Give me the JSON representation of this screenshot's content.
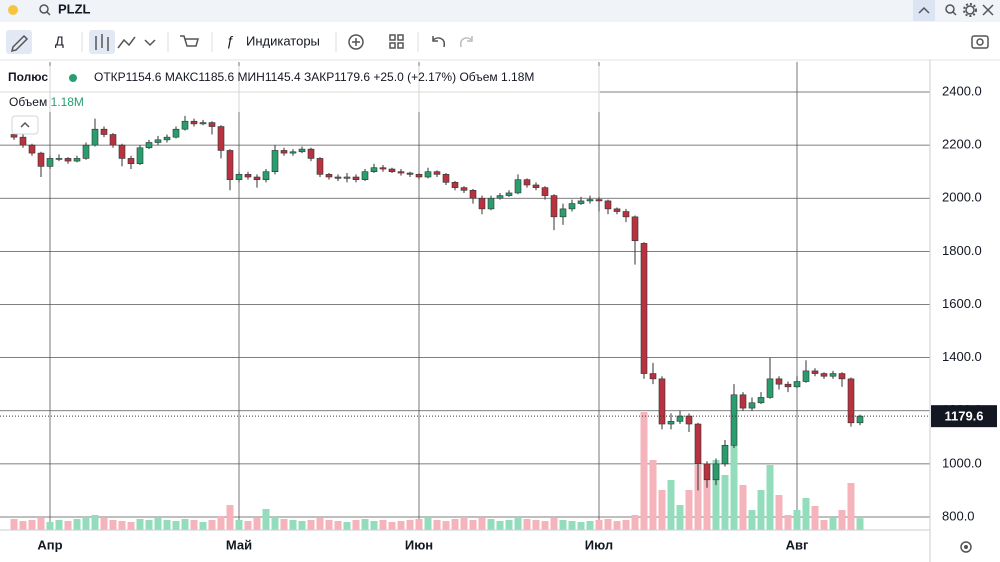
{
  "header": {
    "symbol": "PLZL"
  },
  "toolbar": {
    "interval": "Д",
    "indicators": "Индикаторы"
  },
  "legend": {
    "name": "Полюс",
    "open_label": "ОТКР",
    "high_label": "МАКС",
    "low_label": "МИН",
    "close_label": "ЗАКР",
    "change": "+25.0 (+2.17%)",
    "volume_label": "Объем",
    "volume_value": "1.18M"
  },
  "chart_data": {
    "type": "candlestick",
    "up_color": "#2a9d6f",
    "down_color": "#b8323f",
    "volume_up_color": "#93dcbc",
    "volume_down_color": "#f5b3bb",
    "grid": true,
    "categories": [
      null,
      null,
      null,
      null,
      "Апр",
      null,
      null,
      null,
      null,
      null,
      null,
      null,
      null,
      null,
      null,
      null,
      null,
      null,
      null,
      null,
      null,
      null,
      null,
      null,
      null,
      "Май",
      null,
      null,
      null,
      null,
      null,
      null,
      null,
      null,
      null,
      null,
      null,
      null,
      null,
      null,
      null,
      null,
      null,
      null,
      null,
      "Июн",
      null,
      null,
      null,
      null,
      null,
      null,
      null,
      null,
      null,
      null,
      null,
      null,
      null,
      null,
      null,
      null,
      null,
      null,
      null,
      "Июл",
      null,
      null,
      null,
      null,
      null,
      null,
      null,
      null,
      null,
      null,
      null,
      null,
      null,
      null,
      null,
      null,
      null,
      null,
      null,
      null,
      null,
      "Авг",
      null,
      null,
      null,
      null,
      null,
      null,
      null
    ],
    "open": [
      2240,
      2230,
      2200,
      2170,
      2120,
      2150,
      2150,
      2140,
      2150,
      2200,
      2260,
      2240,
      2200,
      2150,
      2130,
      2190,
      2210,
      2220,
      2230,
      2260,
      2290,
      2280,
      2285,
      2270,
      2180,
      2070,
      2090,
      2080,
      2070,
      2100,
      2180,
      2170,
      2175,
      2185,
      2150,
      2090,
      2080,
      2075,
      2080,
      2070,
      2100,
      2115,
      2110,
      2100,
      2095,
      2090,
      2080,
      2100,
      2090,
      2060,
      2040,
      2030,
      2000,
      1960,
      2000,
      2010,
      2020,
      2070,
      2050,
      2040,
      2010,
      1930,
      1960,
      1980,
      1990,
      1995,
      1990,
      1960,
      1950,
      1930,
      1830,
      1340,
      1320,
      1150,
      1160,
      1180,
      1150,
      1000,
      940,
      1000,
      1070,
      1260,
      1210,
      1230,
      1250,
      1320,
      1300,
      1290,
      1310,
      1350,
      1340,
      1330,
      1340,
      1320,
      1154.6
    ],
    "high": [
      2250,
      2240,
      2205,
      2175,
      2160,
      2165,
      2155,
      2160,
      2210,
      2300,
      2270,
      2245,
      2205,
      2160,
      2200,
      2220,
      2235,
      2240,
      2270,
      2310,
      2300,
      2295,
      2290,
      2275,
      2185,
      2100,
      2100,
      2090,
      2110,
      2200,
      2190,
      2185,
      2195,
      2190,
      2155,
      2095,
      2090,
      2095,
      2090,
      2110,
      2130,
      2125,
      2115,
      2110,
      2100,
      2095,
      2115,
      2105,
      2095,
      2065,
      2045,
      2035,
      2010,
      2010,
      2020,
      2030,
      2090,
      2075,
      2060,
      2045,
      2015,
      1980,
      1995,
      2005,
      2010,
      2005,
      1995,
      1965,
      1960,
      1935,
      1835,
      1380,
      1330,
      1190,
      1200,
      1190,
      1155,
      1010,
      1020,
      1090,
      1300,
      1270,
      1250,
      1270,
      1400,
      1330,
      1310,
      1330,
      1390,
      1360,
      1345,
      1350,
      1345,
      1325,
      1185.6
    ],
    "low": [
      2220,
      2190,
      2160,
      2080,
      2110,
      2140,
      2130,
      2135,
      2145,
      2195,
      2230,
      2190,
      2120,
      2110,
      2125,
      2185,
      2200,
      2210,
      2225,
      2255,
      2270,
      2275,
      2240,
      2150,
      2030,
      2060,
      2070,
      2040,
      2060,
      2090,
      2160,
      2160,
      2170,
      2140,
      2080,
      2070,
      2065,
      2060,
      2060,
      2065,
      2095,
      2100,
      2095,
      2085,
      2080,
      2070,
      2075,
      2080,
      2050,
      2030,
      2020,
      1980,
      1940,
      1955,
      1995,
      2005,
      2015,
      2040,
      2030,
      1995,
      1880,
      1900,
      1950,
      1975,
      1980,
      1950,
      1940,
      1940,
      1910,
      1750,
      1320,
      1300,
      1130,
      1130,
      1150,
      1120,
      900,
      910,
      920,
      990,
      1060,
      1200,
      1200,
      1225,
      1245,
      1280,
      1270,
      1285,
      1305,
      1330,
      1320,
      1320,
      1290,
      1140,
      1145.4
    ],
    "close": [
      2230,
      2200,
      2170,
      2120,
      2150,
      2150,
      2140,
      2150,
      2200,
      2260,
      2240,
      2200,
      2150,
      2130,
      2190,
      2210,
      2220,
      2230,
      2260,
      2290,
      2280,
      2285,
      2270,
      2180,
      2070,
      2090,
      2080,
      2070,
      2100,
      2180,
      2170,
      2175,
      2185,
      2150,
      2090,
      2080,
      2075,
      2080,
      2070,
      2100,
      2115,
      2110,
      2100,
      2095,
      2090,
      2080,
      2100,
      2090,
      2060,
      2040,
      2030,
      2000,
      1960,
      2000,
      2010,
      2020,
      2070,
      2050,
      2040,
      2010,
      1930,
      1960,
      1980,
      1990,
      1995,
      1990,
      1960,
      1950,
      1930,
      1840,
      1340,
      1320,
      1150,
      1160,
      1180,
      1150,
      1000,
      940,
      1000,
      1070,
      1260,
      1210,
      1230,
      1250,
      1320,
      1300,
      1290,
      1310,
      1350,
      1340,
      1330,
      1340,
      1320,
      1154.6,
      1179.6
    ],
    "volume": [
      1.1,
      0.9,
      1.0,
      1.2,
      0.8,
      1.0,
      0.9,
      1.1,
      1.3,
      1.5,
      1.2,
      1.0,
      0.9,
      0.8,
      1.1,
      1.0,
      1.2,
      1.0,
      0.9,
      1.1,
      1.0,
      0.8,
      1.0,
      1.4,
      2.5,
      1.0,
      0.9,
      1.2,
      2.1,
      1.3,
      1.1,
      1.0,
      0.9,
      1.0,
      1.2,
      1.0,
      0.9,
      0.8,
      1.0,
      1.1,
      0.9,
      1.0,
      0.8,
      0.9,
      1.0,
      1.1,
      1.2,
      1.0,
      0.9,
      1.1,
      1.3,
      1.0,
      1.2,
      1.1,
      0.9,
      1.0,
      1.3,
      1.1,
      1.0,
      0.9,
      1.2,
      1.0,
      0.9,
      0.8,
      0.9,
      1.0,
      1.1,
      0.9,
      1.0,
      1.5,
      11.8,
      7.0,
      4.0,
      5.0,
      2.5,
      4.0,
      6.5,
      5.0,
      7.0,
      5.5,
      8.5,
      4.5,
      2.0,
      4.0,
      6.5,
      3.5,
      1.5,
      2.0,
      3.2,
      2.4,
      1.0,
      1.2,
      2.0,
      4.7,
      1.18
    ],
    "ylim": [
      751,
      2513
    ],
    "yticks": [
      {
        "value": 800,
        "label": "800.0"
      },
      {
        "value": 1000,
        "label": "1000.0"
      },
      {
        "value": 1200,
        "label": "1200.0"
      },
      {
        "value": 1400,
        "label": "1400.0"
      },
      {
        "value": 1600,
        "label": "1600.0"
      },
      {
        "value": 1800,
        "label": "1800.0"
      },
      {
        "value": 2000,
        "label": "2000.0"
      },
      {
        "value": 2200,
        "label": "2200.0"
      },
      {
        "value": 2400,
        "label": "2400.0"
      }
    ]
  }
}
